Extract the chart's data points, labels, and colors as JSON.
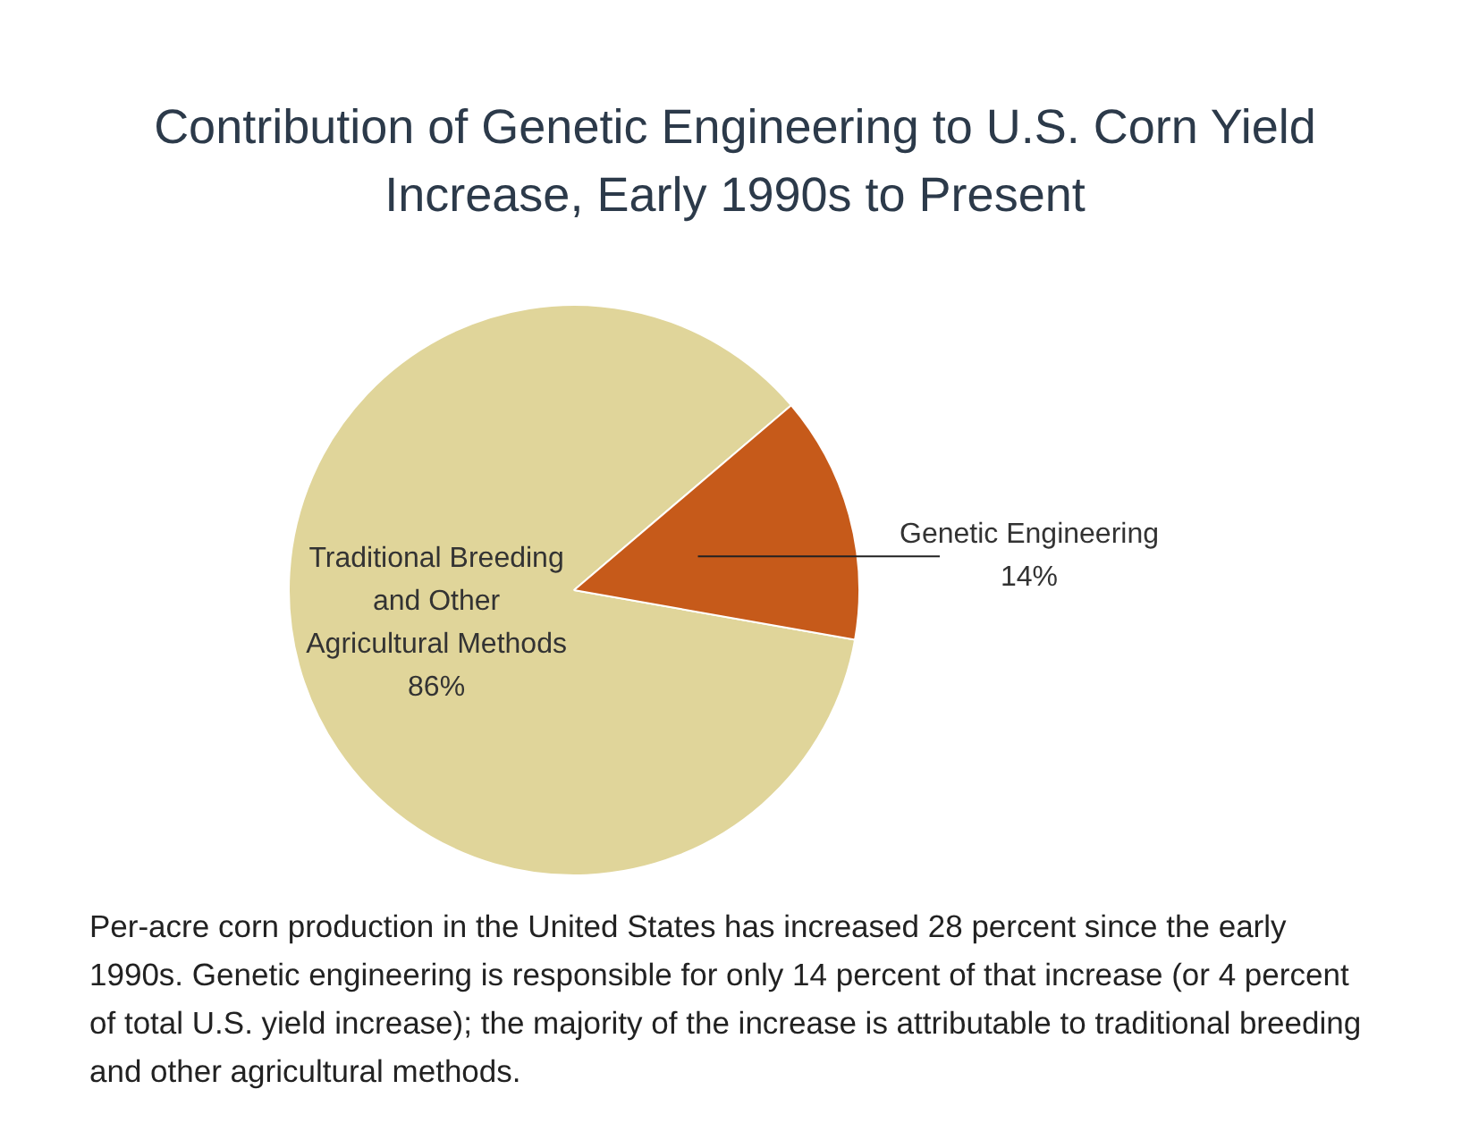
{
  "chart_data": {
    "type": "pie",
    "title": "Contribution of Genetic Engineering to U.S. Corn Yield Increase, Early 1990s to Present",
    "categories": [
      "Traditional Breeding and Other Agricultural Methods",
      "Genetic Engineering"
    ],
    "values": [
      86,
      14
    ],
    "colors": [
      "#e0d59a",
      "#c65a1a"
    ],
    "value_labels": [
      "86%",
      "14%"
    ],
    "legend": false,
    "annotations": [
      "Per-acre corn production in the United States has increased 28 percent since the early 1990s. Genetic engineering is responsible for only 14 percent of that increase (or 4 percent of total U.S. yield increase); the majority of the increase is attributable to traditional breeding and other agricultural methods."
    ]
  }
}
